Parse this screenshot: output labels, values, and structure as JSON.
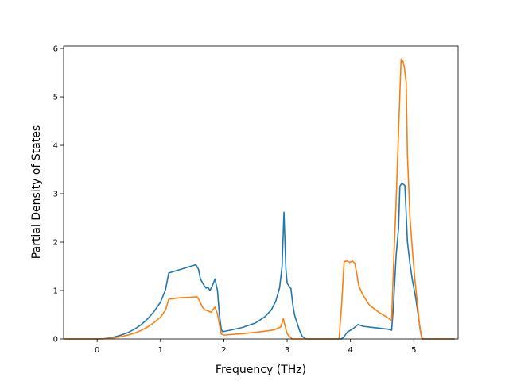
{
  "chart_data": {
    "type": "line",
    "title": "",
    "xlabel": "Frequency (THz)",
    "ylabel": "Partial Density of States",
    "xlim": [
      -0.53,
      5.7
    ],
    "ylim": [
      0,
      6.05
    ],
    "xticks": [
      0,
      1,
      2,
      3,
      4,
      5
    ],
    "yticks": [
      0,
      1,
      2,
      3,
      4,
      5,
      6
    ],
    "grid": false,
    "legend": "none",
    "series": [
      {
        "color": "#1f77b4",
        "points": [
          [
            -0.53,
            0
          ],
          [
            0.0,
            0.0
          ],
          [
            0.1,
            0.005
          ],
          [
            0.2,
            0.02
          ],
          [
            0.3,
            0.05
          ],
          [
            0.4,
            0.09
          ],
          [
            0.5,
            0.14
          ],
          [
            0.6,
            0.21
          ],
          [
            0.7,
            0.3
          ],
          [
            0.8,
            0.42
          ],
          [
            0.9,
            0.57
          ],
          [
            1.0,
            0.76
          ],
          [
            1.08,
            1.02
          ],
          [
            1.13,
            1.36
          ],
          [
            1.25,
            1.41
          ],
          [
            1.4,
            1.47
          ],
          [
            1.5,
            1.51
          ],
          [
            1.56,
            1.53
          ],
          [
            1.6,
            1.44
          ],
          [
            1.63,
            1.24
          ],
          [
            1.68,
            1.12
          ],
          [
            1.72,
            1.05
          ],
          [
            1.75,
            1.07
          ],
          [
            1.78,
            1.0
          ],
          [
            1.82,
            1.1
          ],
          [
            1.86,
            1.24
          ],
          [
            1.9,
            1.0
          ],
          [
            1.93,
            0.5
          ],
          [
            1.96,
            0.2
          ],
          [
            1.98,
            0.15
          ],
          [
            2.1,
            0.18
          ],
          [
            2.3,
            0.24
          ],
          [
            2.5,
            0.33
          ],
          [
            2.65,
            0.46
          ],
          [
            2.75,
            0.6
          ],
          [
            2.82,
            0.78
          ],
          [
            2.88,
            1.05
          ],
          [
            2.92,
            1.5
          ],
          [
            2.95,
            2.62
          ],
          [
            2.98,
            1.45
          ],
          [
            3.0,
            1.15
          ],
          [
            3.04,
            1.07
          ],
          [
            3.06,
            1.04
          ],
          [
            3.09,
            0.7
          ],
          [
            3.12,
            0.48
          ],
          [
            3.16,
            0.32
          ],
          [
            3.2,
            0.16
          ],
          [
            3.24,
            0.05
          ],
          [
            3.3,
            0
          ],
          [
            3.86,
            0
          ],
          [
            3.9,
            0.05
          ],
          [
            3.95,
            0.14
          ],
          [
            4.05,
            0.22
          ],
          [
            4.12,
            0.3
          ],
          [
            4.2,
            0.26
          ],
          [
            4.4,
            0.23
          ],
          [
            4.6,
            0.2
          ],
          [
            4.65,
            0.18
          ],
          [
            4.68,
            0.7
          ],
          [
            4.72,
            1.7
          ],
          [
            4.76,
            2.3
          ],
          [
            4.78,
            3.15
          ],
          [
            4.81,
            3.22
          ],
          [
            4.86,
            3.17
          ],
          [
            4.9,
            2.0
          ],
          [
            4.94,
            1.55
          ],
          [
            4.98,
            1.2
          ],
          [
            5.03,
            0.85
          ],
          [
            5.07,
            0.5
          ],
          [
            5.1,
            0.2
          ],
          [
            5.13,
            0
          ],
          [
            5.65,
            0
          ]
        ]
      },
      {
        "color": "#ff7f0e",
        "points": [
          [
            -0.53,
            0
          ],
          [
            0.0,
            0.0
          ],
          [
            0.1,
            0.003
          ],
          [
            0.2,
            0.01
          ],
          [
            0.3,
            0.03
          ],
          [
            0.4,
            0.055
          ],
          [
            0.5,
            0.085
          ],
          [
            0.6,
            0.125
          ],
          [
            0.7,
            0.18
          ],
          [
            0.8,
            0.25
          ],
          [
            0.9,
            0.34
          ],
          [
            1.0,
            0.45
          ],
          [
            1.08,
            0.6
          ],
          [
            1.13,
            0.82
          ],
          [
            1.3,
            0.85
          ],
          [
            1.45,
            0.86
          ],
          [
            1.58,
            0.87
          ],
          [
            1.62,
            0.78
          ],
          [
            1.66,
            0.66
          ],
          [
            1.7,
            0.6
          ],
          [
            1.75,
            0.58
          ],
          [
            1.8,
            0.55
          ],
          [
            1.86,
            0.66
          ],
          [
            1.9,
            0.52
          ],
          [
            1.93,
            0.3
          ],
          [
            1.96,
            0.1
          ],
          [
            2.0,
            0.08
          ],
          [
            2.3,
            0.11
          ],
          [
            2.6,
            0.15
          ],
          [
            2.8,
            0.19
          ],
          [
            2.9,
            0.25
          ],
          [
            2.94,
            0.42
          ],
          [
            2.97,
            0.25
          ],
          [
            3.0,
            0.11
          ],
          [
            3.03,
            0.06
          ],
          [
            3.08,
            0
          ],
          [
            3.82,
            0
          ],
          [
            3.86,
            0.7
          ],
          [
            3.9,
            1.6
          ],
          [
            3.95,
            1.61
          ],
          [
            3.99,
            1.58
          ],
          [
            4.03,
            1.61
          ],
          [
            4.07,
            1.56
          ],
          [
            4.1,
            1.35
          ],
          [
            4.13,
            1.1
          ],
          [
            4.2,
            0.9
          ],
          [
            4.3,
            0.7
          ],
          [
            4.45,
            0.55
          ],
          [
            4.6,
            0.43
          ],
          [
            4.65,
            0.38
          ],
          [
            4.68,
            1.5
          ],
          [
            4.72,
            2.8
          ],
          [
            4.76,
            4.3
          ],
          [
            4.8,
            5.78
          ],
          [
            4.83,
            5.73
          ],
          [
            4.85,
            5.62
          ],
          [
            4.88,
            5.3
          ],
          [
            4.9,
            3.8
          ],
          [
            4.94,
            2.5
          ],
          [
            4.98,
            1.8
          ],
          [
            5.02,
            1.2
          ],
          [
            5.06,
            0.7
          ],
          [
            5.09,
            0.3
          ],
          [
            5.12,
            0.05
          ],
          [
            5.14,
            0
          ],
          [
            5.65,
            0
          ]
        ]
      }
    ]
  }
}
